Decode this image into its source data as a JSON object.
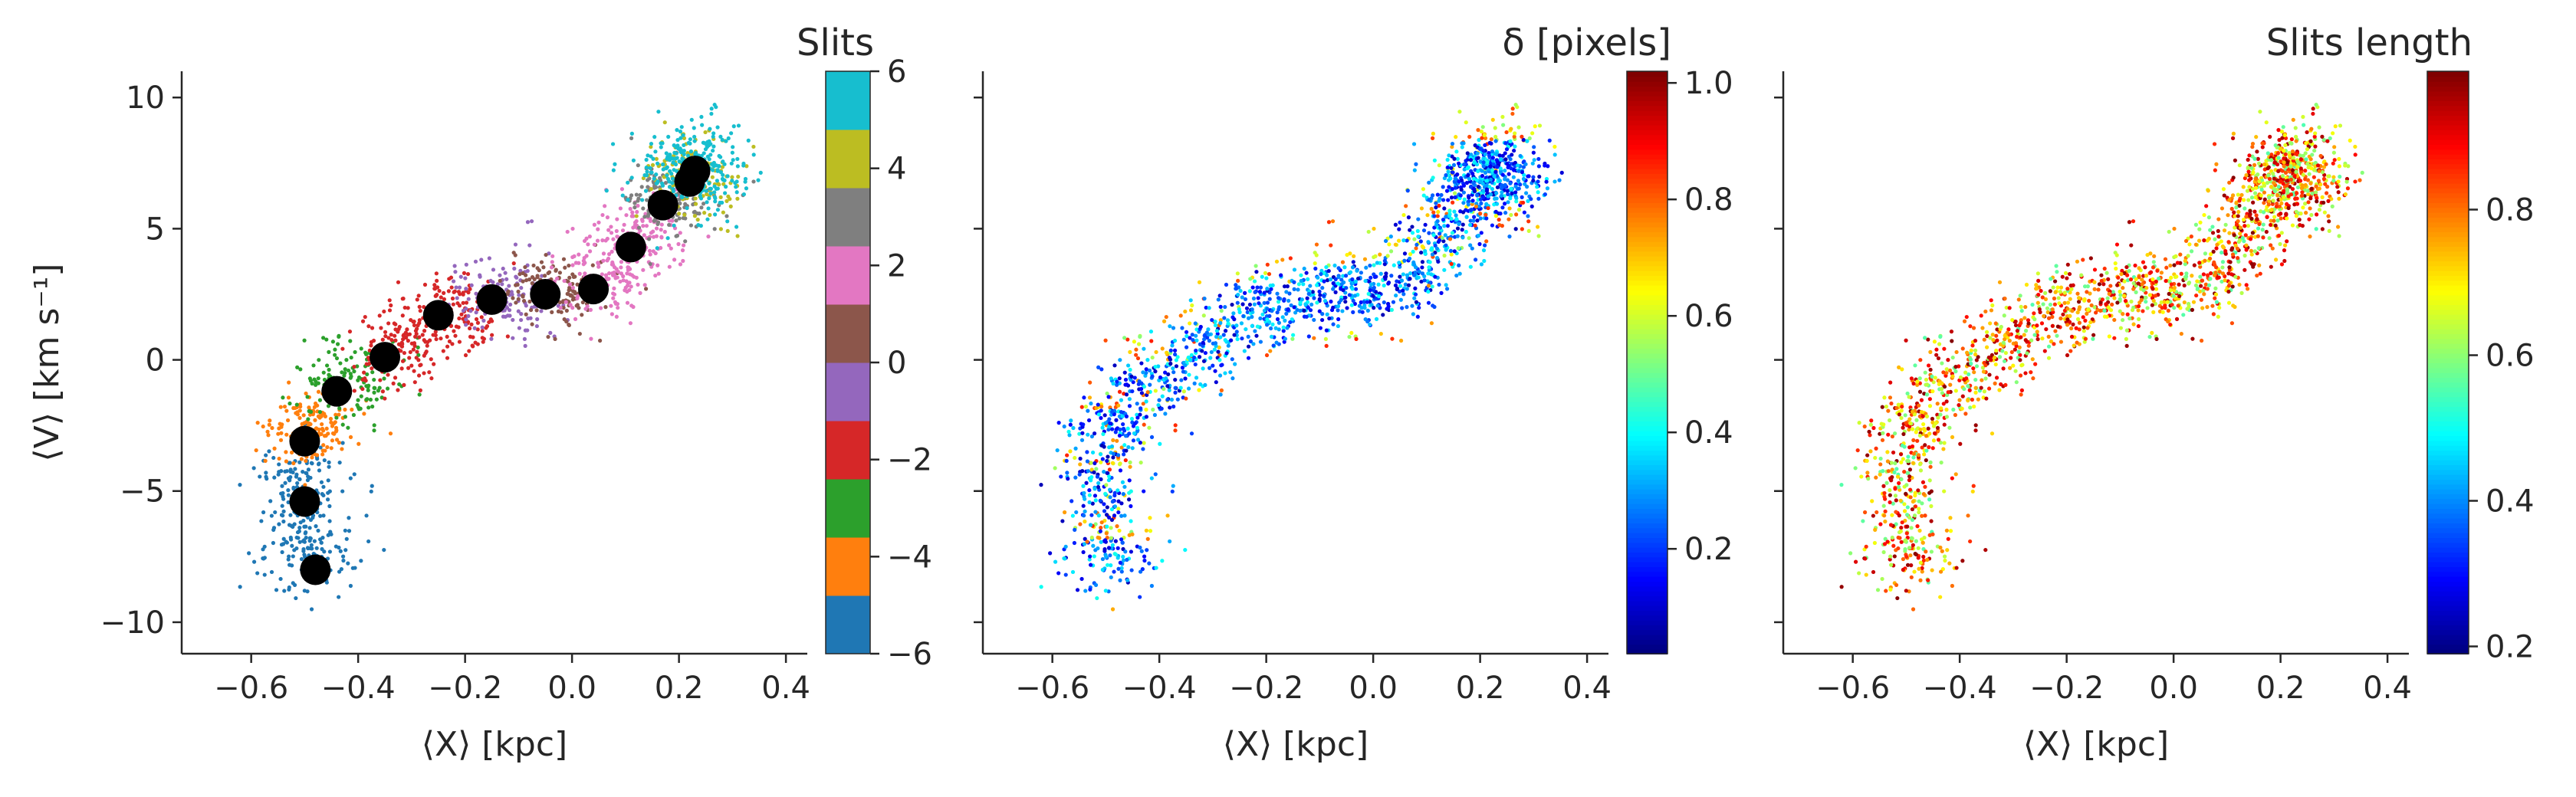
{
  "chart_data": [
    {
      "type": "scatter",
      "title": "",
      "xlabel": "⟨X⟩ [kpc]",
      "ylabel": "⟨V⟩ [km s⁻¹]",
      "xlim": [
        -0.73,
        0.44
      ],
      "ylim": [
        -11.2,
        11.0
      ],
      "xticks": [
        -0.6,
        -0.4,
        -0.2,
        0.0,
        0.2,
        0.4
      ],
      "xtick_labels": [
        "−0.6",
        "−0.4",
        "−0.2",
        "0.0",
        "0.2",
        "0.4"
      ],
      "yticks": [
        -10,
        -5,
        0,
        5,
        10
      ],
      "ytick_labels": [
        "−10",
        "−5",
        "0",
        "5",
        "10"
      ],
      "grid": false,
      "colorbar": {
        "title": "Slits",
        "range": [
          -6,
          6
        ],
        "ticks": [
          -6,
          -4,
          -2,
          0,
          2,
          4,
          6
        ],
        "tick_labels": [
          "−6",
          "−4",
          "−2",
          "0",
          "2",
          "4",
          "6"
        ],
        "colors": [
          "#1f77b4",
          "#ff7f0e",
          "#2ca02c",
          "#d62728",
          "#9467bd",
          "#8c564b",
          "#e377c2",
          "#7f7f7f",
          "#bcbd22",
          "#17becf"
        ]
      },
      "series": [
        {
          "marker": "large black dots (slit centroids)",
          "color": "#000000",
          "points": [
            {
              "x": -0.48,
              "y": -8.0
            },
            {
              "x": -0.5,
              "y": -5.4
            },
            {
              "x": -0.5,
              "y": -3.1
            },
            {
              "x": -0.44,
              "y": -1.2
            },
            {
              "x": -0.35,
              "y": 0.1
            },
            {
              "x": -0.25,
              "y": 1.7
            },
            {
              "x": -0.15,
              "y": 2.3
            },
            {
              "x": -0.05,
              "y": 2.5
            },
            {
              "x": 0.04,
              "y": 2.7
            },
            {
              "x": 0.11,
              "y": 4.3
            },
            {
              "x": 0.17,
              "y": 5.9
            },
            {
              "x": 0.22,
              "y": 6.8
            },
            {
              "x": 0.23,
              "y": 7.2
            }
          ]
        }
      ]
    },
    {
      "type": "scatter",
      "title": "",
      "xlabel": "⟨X⟩ [kpc]",
      "ylabel": "",
      "xlim": [
        -0.73,
        0.44
      ],
      "ylim": [
        -11.2,
        11.0
      ],
      "xticks": [
        -0.6,
        -0.4,
        -0.2,
        0.0,
        0.2,
        0.4
      ],
      "xtick_labels": [
        "−0.6",
        "−0.4",
        "−0.2",
        "0.0",
        "0.2",
        "0.4"
      ],
      "yticks": [
        -10,
        -5,
        0,
        5,
        10
      ],
      "grid": false,
      "colorbar": {
        "title": "δ [pixels]",
        "colormap": "jet",
        "range": [
          0.02,
          1.02
        ],
        "ticks": [
          0.2,
          0.4,
          0.6,
          0.8,
          1.0
        ],
        "tick_labels": [
          "0.2",
          "0.4",
          "0.6",
          "0.8",
          "1.0"
        ]
      }
    },
    {
      "type": "scatter",
      "title": "",
      "xlabel": "⟨X⟩ [kpc]",
      "ylabel": "",
      "xlim": [
        -0.73,
        0.44
      ],
      "ylim": [
        -11.2,
        11.0
      ],
      "xticks": [
        -0.6,
        -0.4,
        -0.2,
        0.0,
        0.2,
        0.4
      ],
      "xtick_labels": [
        "−0.6",
        "−0.4",
        "−0.2",
        "0.0",
        "0.2",
        "0.4"
      ],
      "yticks": [
        -10,
        -5,
        0,
        5,
        10
      ],
      "grid": false,
      "colorbar": {
        "title": "Slits length",
        "colormap": "jet",
        "range": [
          0.19,
          0.99
        ],
        "ticks": [
          0.2,
          0.4,
          0.6,
          0.8
        ],
        "tick_labels": [
          "0.2",
          "0.4",
          "0.6",
          "0.8"
        ]
      }
    }
  ]
}
